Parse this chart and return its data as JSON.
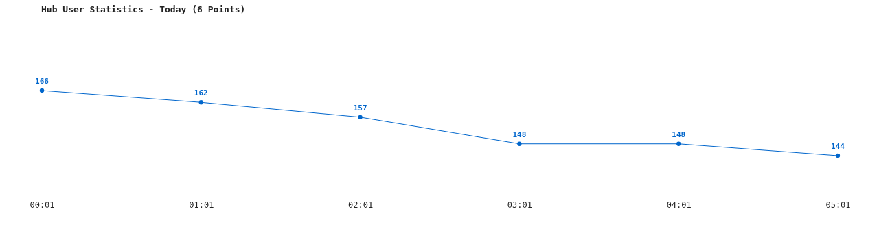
{
  "chart_data": {
    "type": "line",
    "title": "Hub User Statistics - Today (6 Points)",
    "categories": [
      "00:01",
      "01:01",
      "02:01",
      "03:01",
      "04:01",
      "05:01"
    ],
    "series": [
      {
        "color": "#0066cc",
        "values": [
          166,
          162,
          157,
          148,
          148,
          144
        ]
      }
    ],
    "data_labels": true,
    "marker": "circle",
    "line_style": "solid",
    "grid": false,
    "tick_labels": "x"
  }
}
